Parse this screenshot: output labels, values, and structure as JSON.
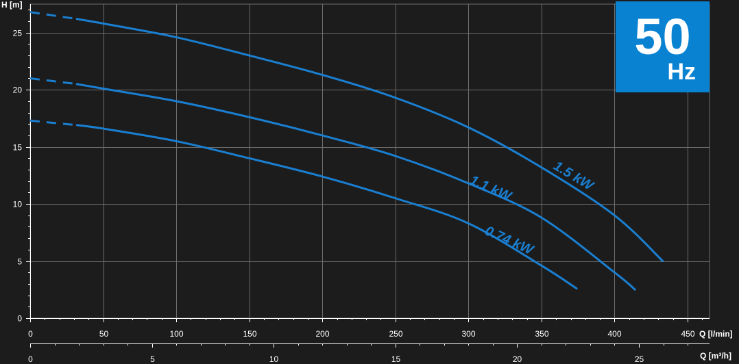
{
  "badge": {
    "value": "50",
    "unit": "Hz"
  },
  "colors": {
    "background": "#1c1c1c",
    "grid": "#6e6e6e",
    "curve": "#1a7fd1",
    "badge": "#0a82d2",
    "text": "#ffffff"
  },
  "chart_data": {
    "type": "line",
    "title": "",
    "ylabel": "H [m]",
    "xlabel": "Q [l/min]",
    "x2label": "Q [m³/h]",
    "xlim": [
      0,
      465
    ],
    "ylim": [
      0,
      27.5
    ],
    "x2lim": [
      0,
      27.9
    ],
    "xticks": [
      0,
      50,
      100,
      150,
      200,
      250,
      300,
      350,
      400,
      450
    ],
    "yticks": [
      0,
      5,
      10,
      15,
      20,
      25
    ],
    "x2ticks": [
      0,
      5,
      10,
      15,
      20,
      25
    ],
    "grid": true,
    "dashed_until_x": 32,
    "series": [
      {
        "name": "1.5 kW",
        "x": [
          0,
          32,
          50,
          100,
          150,
          200,
          250,
          300,
          350,
          400,
          433
        ],
        "y": [
          26.8,
          26.2,
          25.8,
          24.6,
          23.0,
          21.3,
          19.3,
          16.7,
          13.2,
          9.0,
          5.0
        ]
      },
      {
        "name": "1.1 kW",
        "x": [
          0,
          32,
          50,
          100,
          150,
          200,
          250,
          300,
          350,
          400,
          414
        ],
        "y": [
          21.0,
          20.5,
          20.1,
          19.0,
          17.6,
          16.0,
          14.2,
          11.8,
          8.8,
          4.0,
          2.5
        ]
      },
      {
        "name": "0.74 kW",
        "x": [
          0,
          32,
          50,
          100,
          150,
          200,
          250,
          300,
          350,
          374
        ],
        "y": [
          17.3,
          16.9,
          16.6,
          15.5,
          14.0,
          12.4,
          10.5,
          8.3,
          4.6,
          2.6
        ]
      }
    ]
  }
}
